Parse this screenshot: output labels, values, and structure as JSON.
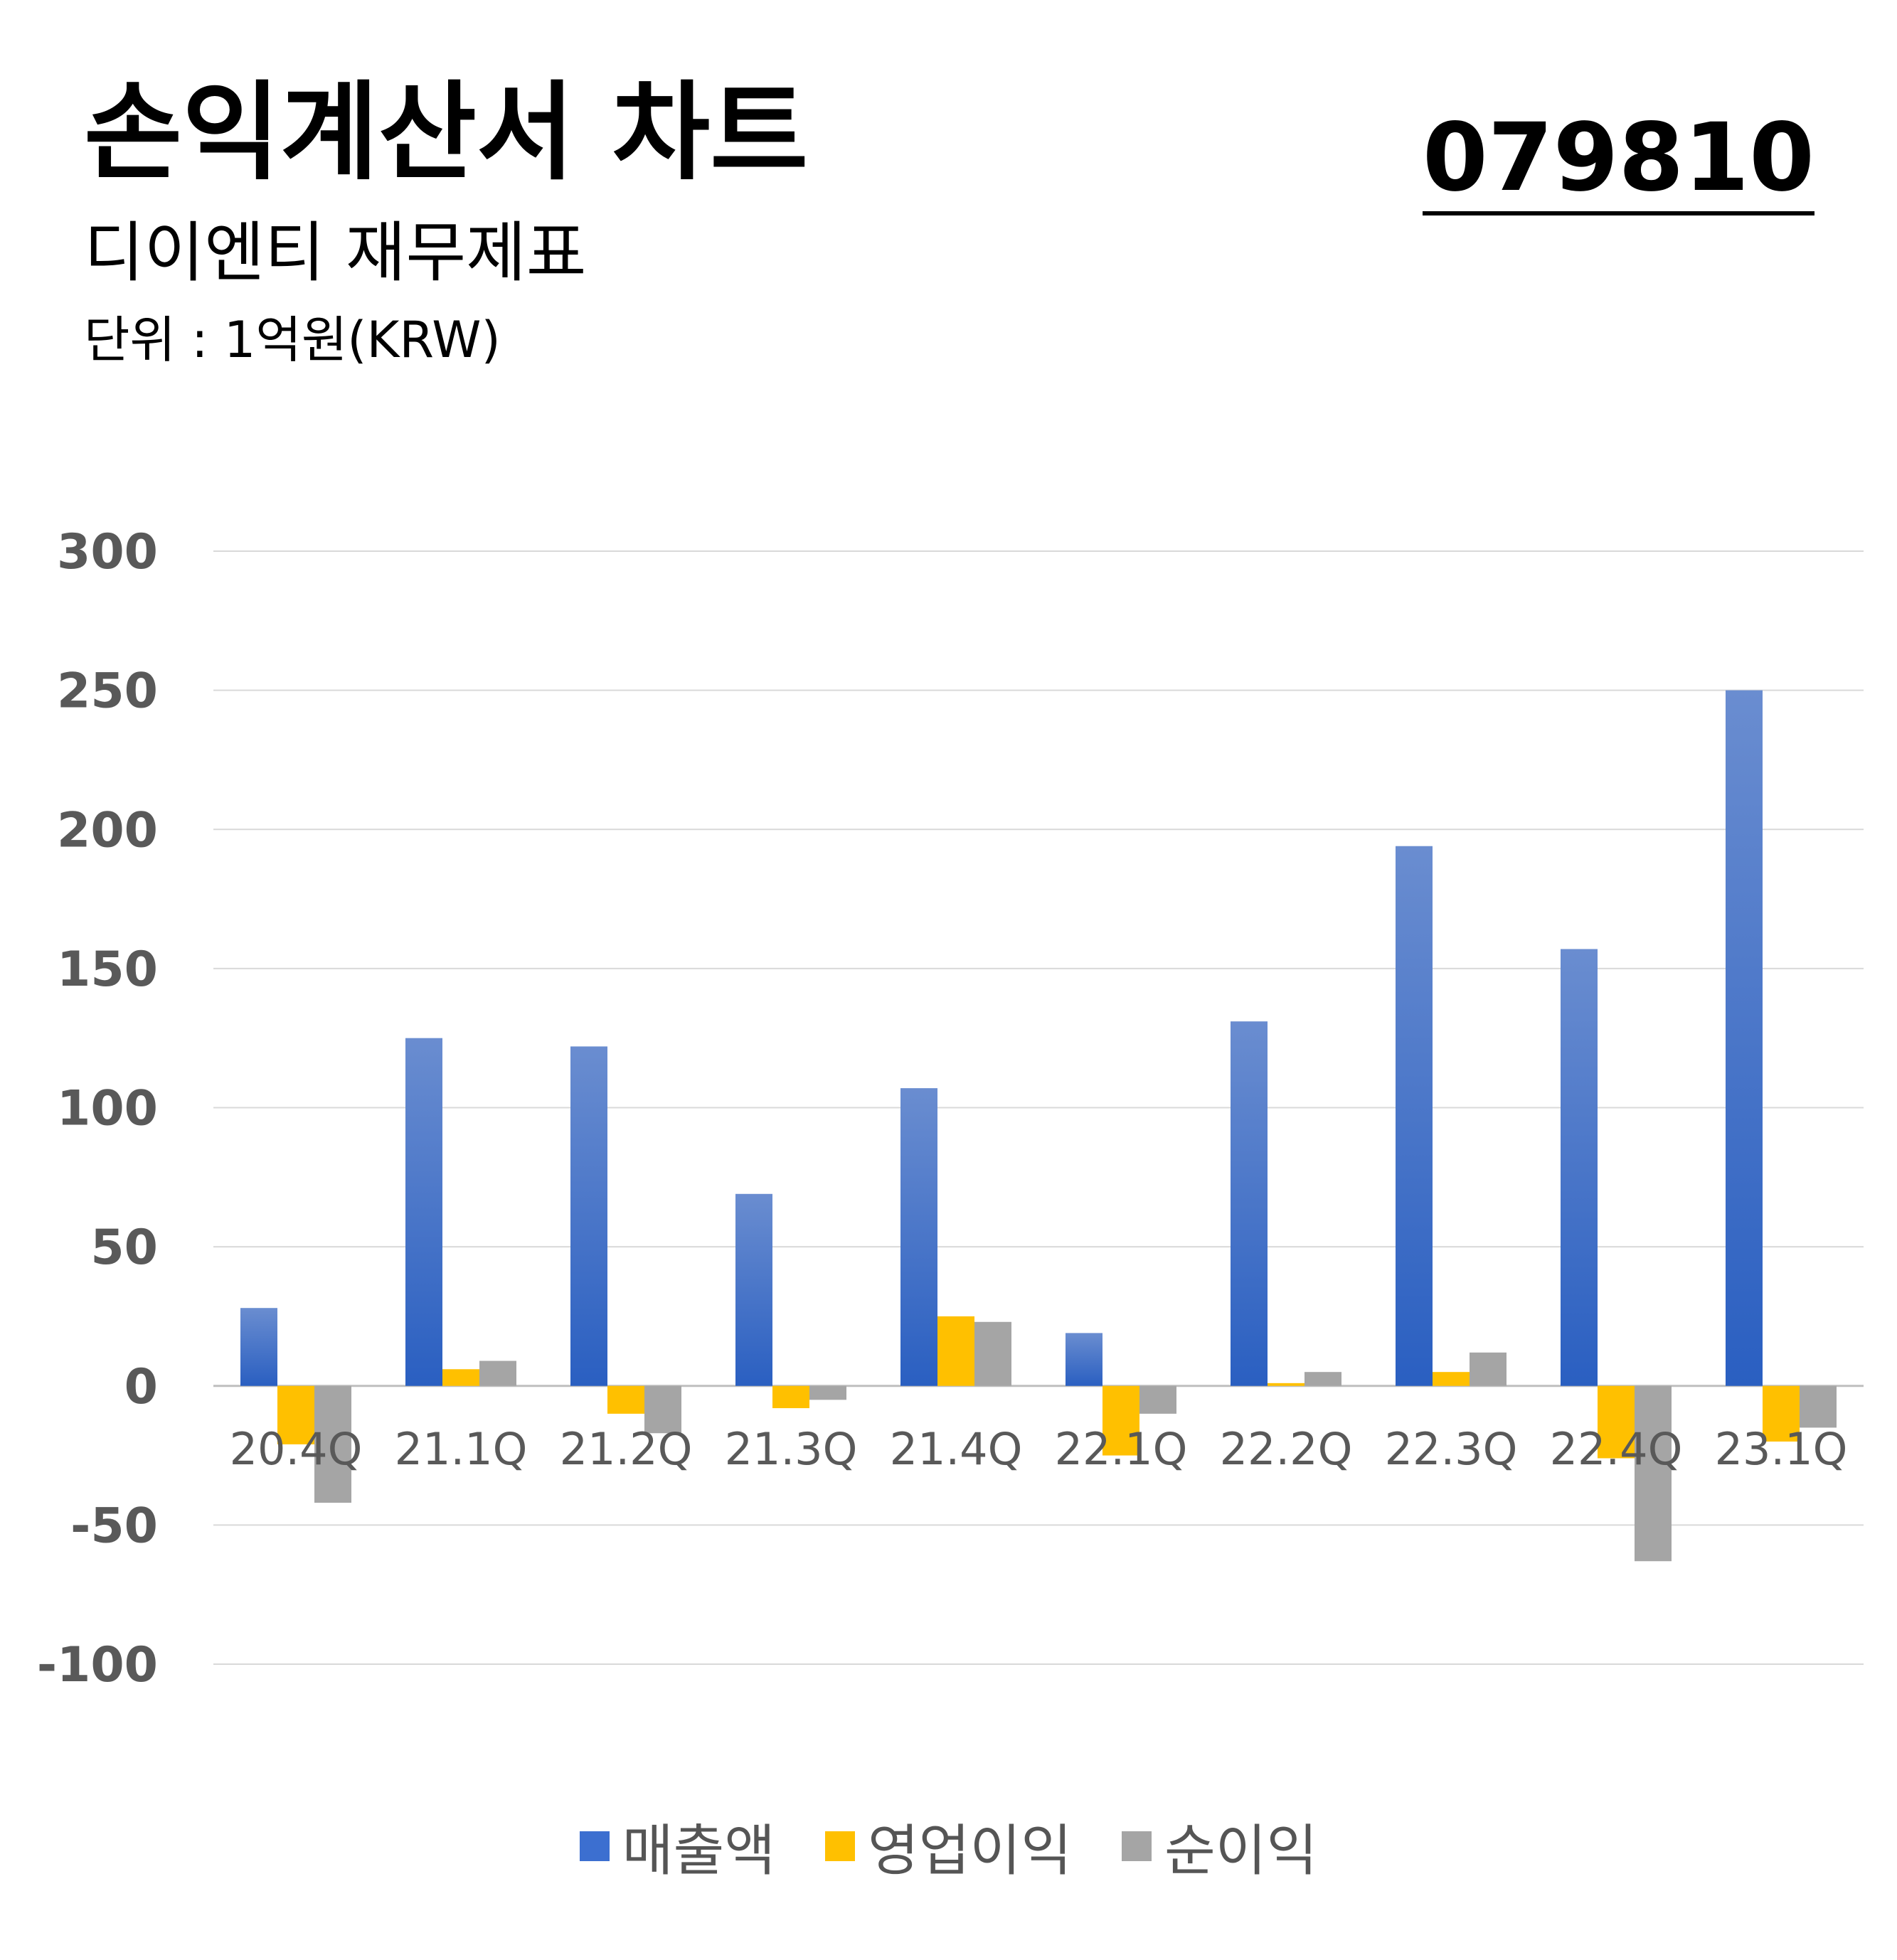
{
  "header": {
    "title": "손익계산서 차트",
    "subtitle": "디이엔티 재무제표",
    "unit": "단위 : 1억원(KRW)",
    "code": "079810"
  },
  "colors": {
    "revenue": "#3c6fd0",
    "operating": "#ffc000",
    "net": "#a5a5a5",
    "grid": "#d9d9d9",
    "tick_text": "#595959"
  },
  "chart_data": {
    "type": "bar",
    "categories": [
      "20.4Q",
      "21.1Q",
      "21.2Q",
      "21.3Q",
      "21.4Q",
      "22.1Q",
      "22.2Q",
      "22.3Q",
      "22.4Q",
      "23.1Q"
    ],
    "series": [
      {
        "name": "매출액",
        "values": [
          28,
          125,
          122,
          69,
          107,
          19,
          131,
          194,
          157,
          250
        ]
      },
      {
        "name": "영업이익",
        "values": [
          -21,
          6,
          -10,
          -8,
          25,
          -25,
          1,
          5,
          -26,
          -20
        ]
      },
      {
        "name": "순이익",
        "values": [
          -42,
          9,
          -17,
          -5,
          23,
          -10,
          5,
          12,
          -63,
          -15
        ]
      }
    ],
    "ylim": [
      -100,
      300
    ],
    "yticks": [
      "300",
      "250",
      "200",
      "150",
      "100",
      "50",
      "0",
      "-50",
      "-100"
    ],
    "grid": true,
    "legend_position": "bottom"
  }
}
